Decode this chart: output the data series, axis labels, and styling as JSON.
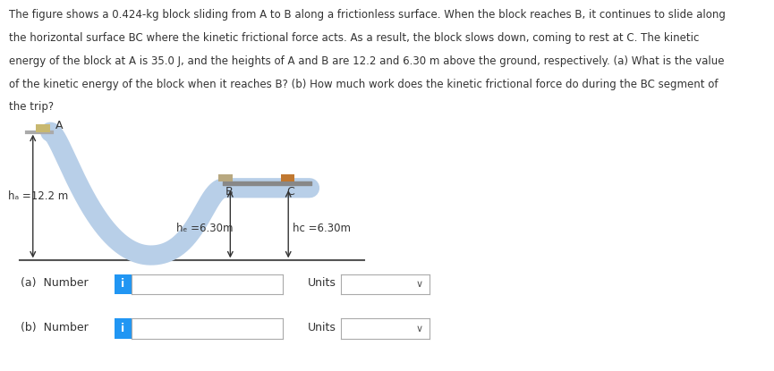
{
  "background_color": "#ffffff",
  "text_color": "#333333",
  "paragraph_line1": "The figure shows a 0.424-kg block sliding from A to B along a frictionless surface. When the block reaches B, it continues to slide along",
  "paragraph_line2": "the horizontal surface BC where the kinetic frictional force acts. As a result, the block slows down, coming to rest at C. The kinetic",
  "paragraph_line3": "energy of the block at A is 35.0 J, and the heights of A and B are 12.2 and 6.30 m above the ground, respectively. (a) What is the value",
  "paragraph_line4": "of the kinetic energy of the block when it reaches B? (b) How much work does the kinetic frictional force do during the BC segment of",
  "paragraph_line5": "the trip?",
  "curve_color": "#b8cfe8",
  "curve_linewidth": 16,
  "ground_color": "#555555",
  "platform_color": "#888888",
  "label_A": "A",
  "label_B": "B",
  "label_C": "C",
  "label_hA": "hₐ =12.2 m",
  "label_hB": "hₑ =6.30m",
  "label_hC": "hᴄ =6.30m",
  "input_box_color": "#ffffff",
  "input_border_color": "#aaaaaa",
  "info_button_color": "#2196F3",
  "dropdown_border_color": "#aaaaaa",
  "arrow_color": "#333333",
  "font_size_text": 8.5,
  "font_size_labels": 8.5,
  "font_size_ab": 9
}
